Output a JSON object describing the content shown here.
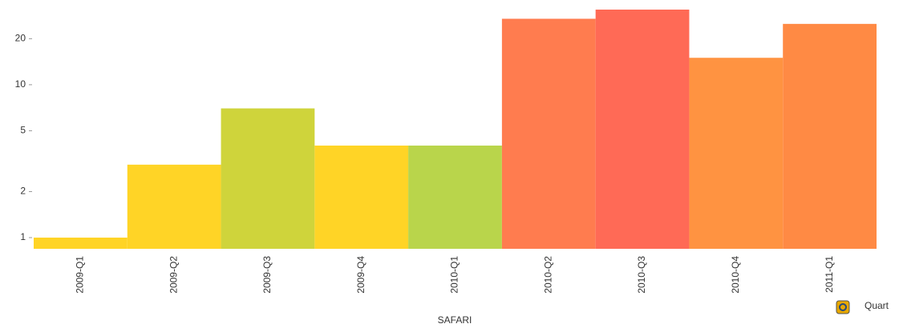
{
  "chart_data": {
    "type": "bar",
    "categories": [
      "2009-Q1",
      "2009-Q2",
      "2009-Q3",
      "2009-Q4",
      "2010-Q1",
      "2010-Q2",
      "2010-Q3",
      "2010-Q4",
      "2011-Q1"
    ],
    "values": [
      1,
      3,
      7,
      4,
      4,
      27,
      31,
      15,
      25
    ],
    "colors": [
      "#ffd426",
      "#ffd426",
      "#cfd43b",
      "#ffd426",
      "#b9d54b",
      "#ff7c4f",
      "#ff6a56",
      "#ff9341",
      "#ff8a44"
    ],
    "ylim": [
      0.845,
      31
    ],
    "yticks": [
      1,
      2,
      5,
      10,
      20
    ],
    "log_scale": true,
    "xlabel": "SAFARI",
    "legend_label": "Quart"
  }
}
